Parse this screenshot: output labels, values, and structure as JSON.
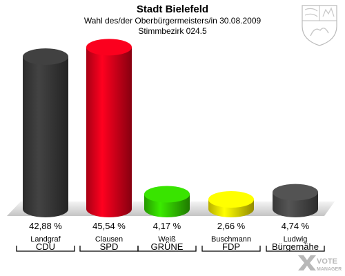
{
  "header": {
    "title": "Stadt Bielefeld",
    "subtitle": "Wahl des/der Oberbürgermeisters/in 30.08.2009",
    "district": "Stimmbezirk 024.5"
  },
  "chart_data": {
    "type": "bar",
    "title": "Stadt Bielefeld",
    "subtitle": "Wahl des/der Oberbürgermeisters/in 30.08.2009",
    "xlabel": "",
    "ylabel": "",
    "ylim": [
      0,
      50
    ],
    "grid": false,
    "legend": "none",
    "categories": [
      "Landgraf",
      "Clausen",
      "Weiß",
      "Buschmann",
      "Ludwig"
    ],
    "parties": [
      "CDU",
      "SPD",
      "GRÜNE",
      "FDP",
      "Bürgernähe"
    ],
    "values": [
      42.88,
      45.54,
      4.17,
      2.66,
      4.74
    ],
    "value_labels": [
      "42,88 %",
      "45,54 %",
      "4,17 %",
      "2,66 %",
      "4,74 %"
    ],
    "colors": [
      "#3a3a3a",
      "#e0001b",
      "#33cc00",
      "#f5e800",
      "#4a4a4a"
    ]
  },
  "logo": {
    "crest_icon": "nrw-crest-icon",
    "watermark_text_1": "VOTE",
    "watermark_text_2": "MANAGER"
  }
}
